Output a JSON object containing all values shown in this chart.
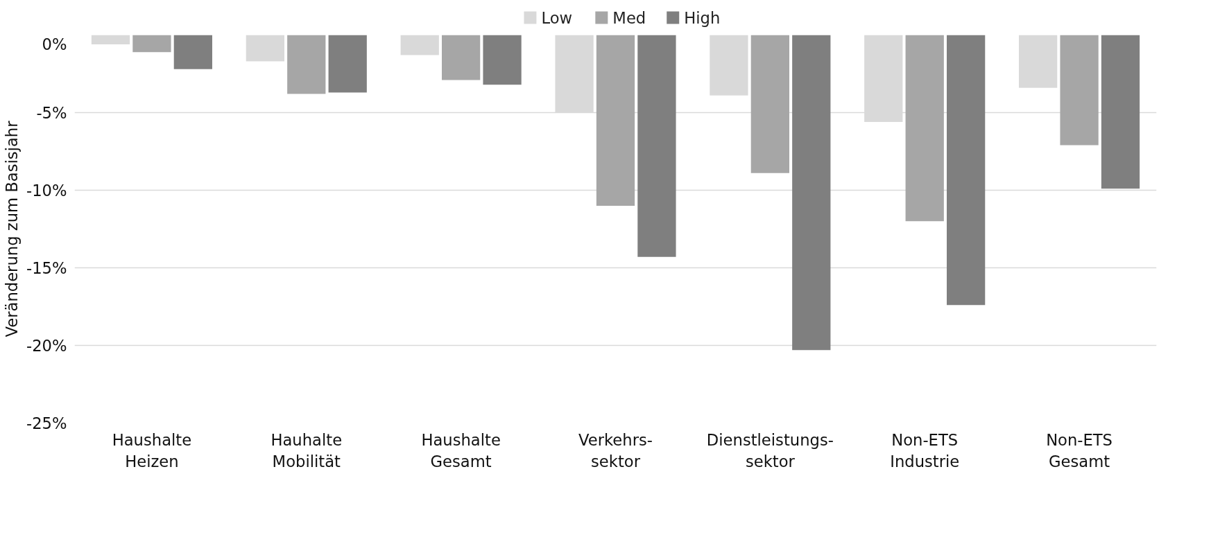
{
  "chart_data": {
    "type": "bar",
    "ylabel": "Veränderung zum Basisjahr",
    "categories": [
      "Haushalte\nHeizen",
      "Hauhalte\nMobilität",
      "Haushalte\nGesamt",
      "Verkehrs-\nsektor",
      "Dienstleistungs-\nsektor",
      "Non-ETS\nIndustrie",
      "Non-ETS\nGesamt"
    ],
    "series": [
      {
        "name": "Low",
        "color": "#d9d9d9",
        "values": [
          -0.6,
          -1.7,
          -1.3,
          -5.0,
          -3.9,
          -5.6,
          -3.4
        ]
      },
      {
        "name": "Med",
        "color": "#a6a6a6",
        "values": [
          -1.1,
          -3.8,
          -2.9,
          -11.0,
          -8.9,
          -12.0,
          -7.1
        ]
      },
      {
        "name": "High",
        "color": "#7f7f7f",
        "values": [
          -2.2,
          -3.7,
          -3.2,
          -14.3,
          -20.3,
          -17.4,
          -9.9
        ]
      }
    ],
    "ylim": [
      -25,
      0
    ],
    "yticks": [
      {
        "value": 0,
        "label": "0%"
      },
      {
        "value": -5,
        "label": "-5%"
      },
      {
        "value": -10,
        "label": "-10%"
      },
      {
        "value": -15,
        "label": "-15%"
      },
      {
        "value": -20,
        "label": "-20%"
      },
      {
        "value": -25,
        "label": "-25%"
      }
    ],
    "grid": "y",
    "legend": "top"
  }
}
